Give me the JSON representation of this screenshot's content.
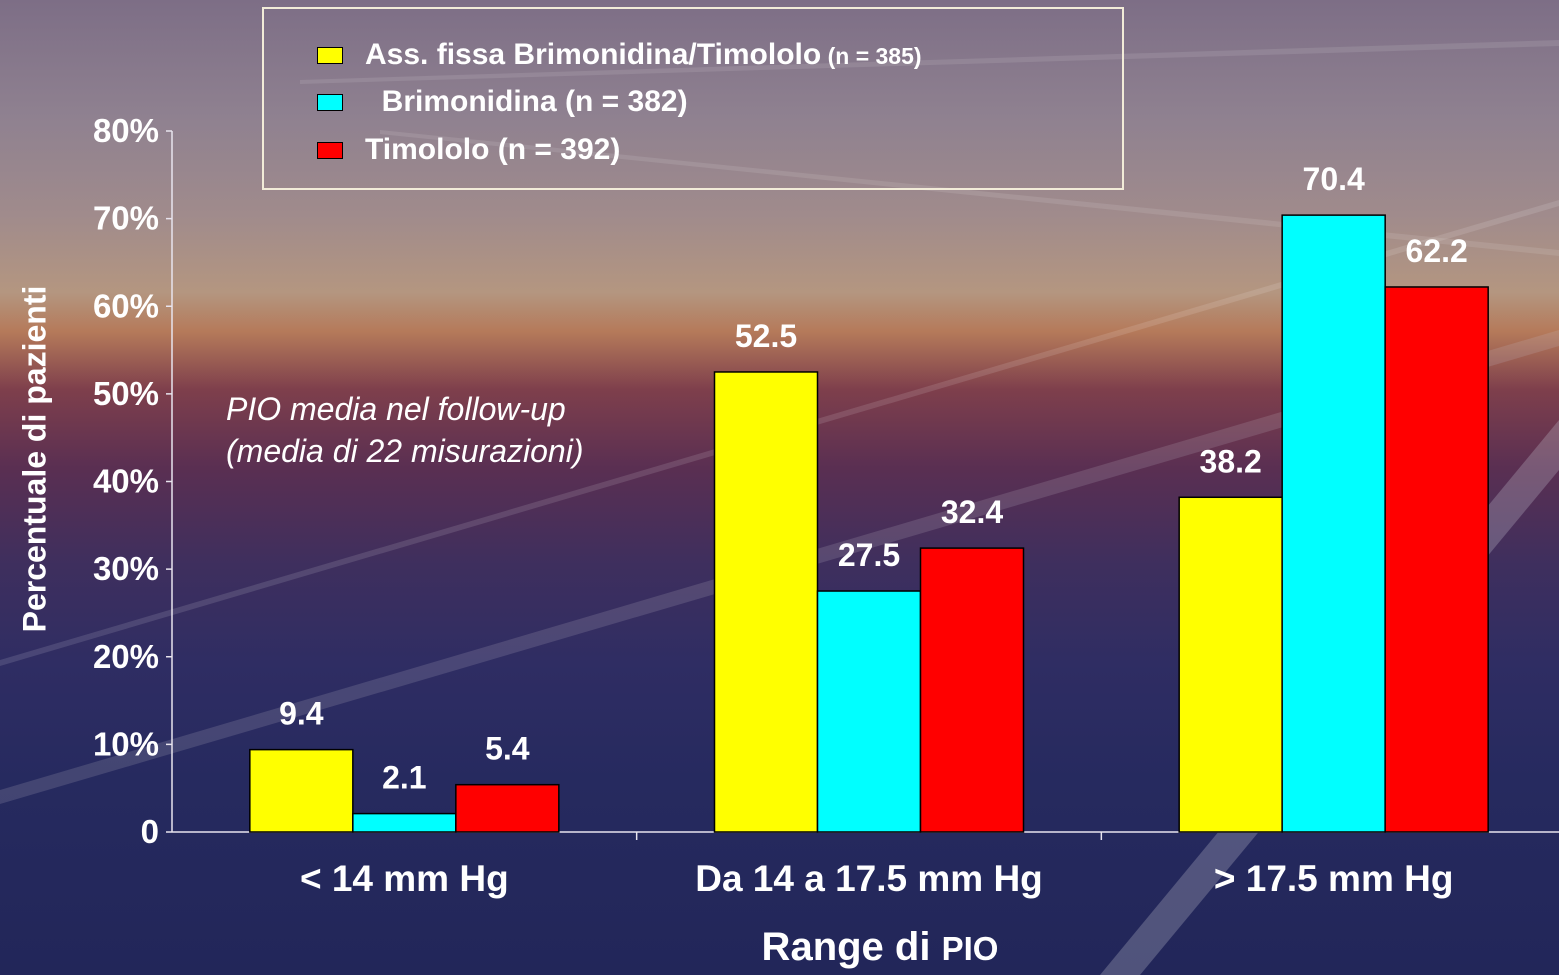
{
  "chart_data": {
    "type": "bar",
    "xlabel_main": "Range di",
    "xlabel_suffix": "PIO",
    "ylabel": "Percentuale di pazienti",
    "ylim": [
      0,
      80
    ],
    "y_ticks": [
      "0",
      "10%",
      "20%",
      "30%",
      "40%",
      "50%",
      "60%",
      "70%",
      "80%"
    ],
    "categories": [
      "< 14 mm Hg",
      "Da 14 a 17.5 mm Hg",
      "> 17.5 mm Hg"
    ],
    "series": [
      {
        "name_main": "Ass. fissa Brimonidina/Timololo",
        "name_suffix": " (n = 385)",
        "color": "#ffff00",
        "values": [
          9.4,
          52.5,
          38.2
        ],
        "labels": [
          "9.4",
          "52.5",
          "38.2"
        ]
      },
      {
        "name_main": "  Brimonidina (n = 382)",
        "name_suffix": "",
        "color": "#00ffff",
        "values": [
          2.1,
          27.5,
          70.4
        ],
        "labels": [
          "2.1",
          "27.5",
          "70.4"
        ]
      },
      {
        "name_main": "Timololo (n = 392)",
        "name_suffix": "",
        "color": "#ff0000",
        "values": [
          5.4,
          32.4,
          62.2
        ],
        "labels": [
          "5.4",
          "32.4",
          "62.2"
        ]
      }
    ],
    "annotation_lines": [
      "PIO media nel follow-up",
      "(media di 22 misurazioni)"
    ],
    "legend_position": "top",
    "grid": false
  }
}
